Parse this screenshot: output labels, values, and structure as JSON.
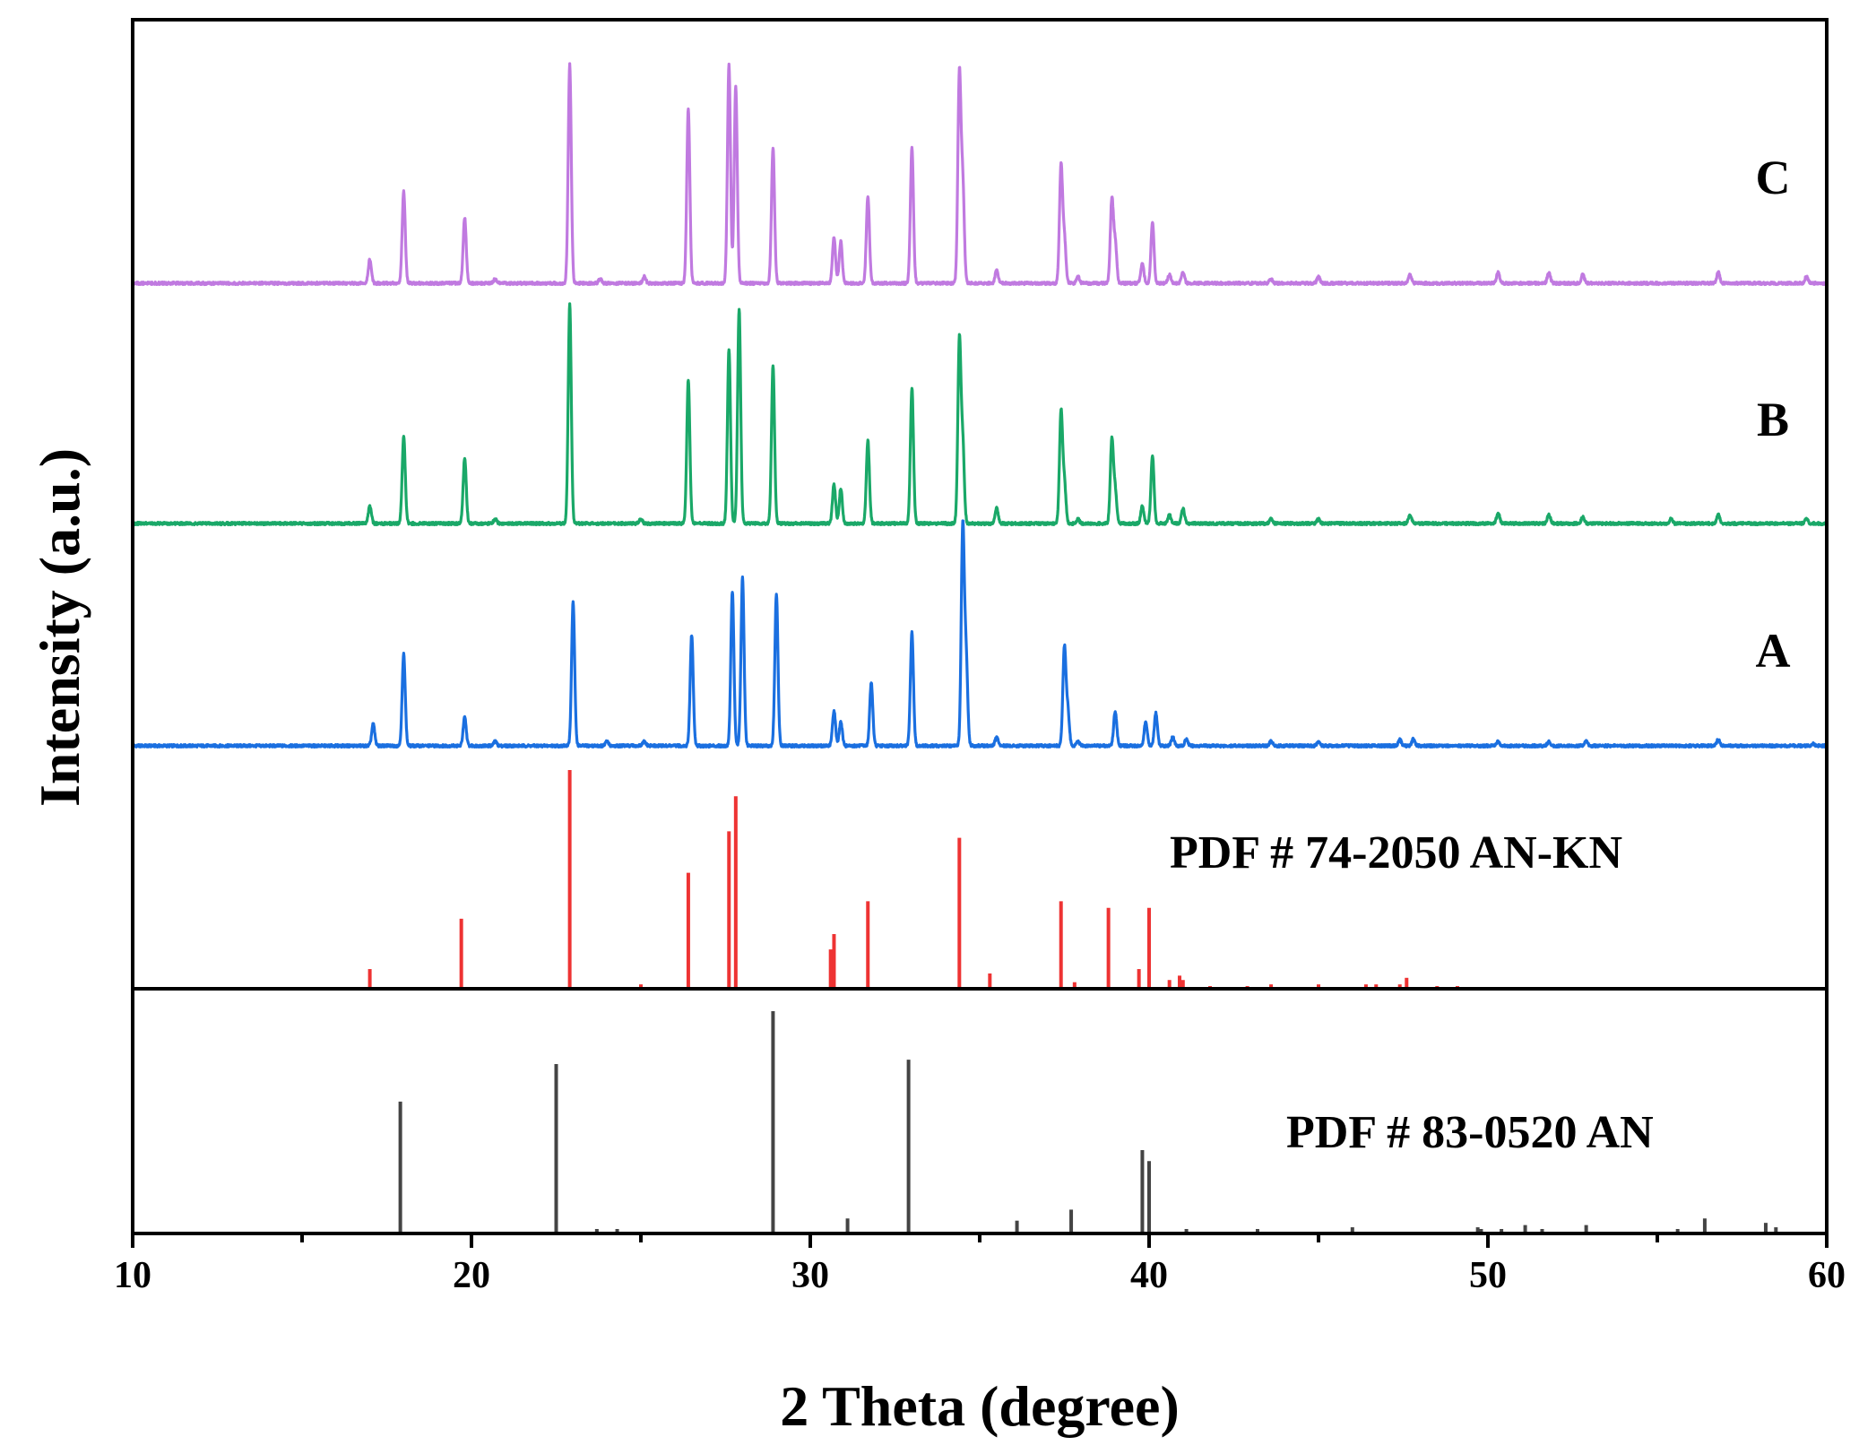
{
  "chart_data": {
    "type": "line",
    "title": "",
    "xlabel": "2 Theta (degree)",
    "ylabel": "Intensity (a.u.)",
    "xlim": [
      10,
      60
    ],
    "x_ticks": [
      10,
      20,
      30,
      40,
      50,
      60
    ],
    "grid": false,
    "colors": {
      "A": "#1a6fe0",
      "B": "#1aa868",
      "C": "#c07ae0",
      "ref_ankn": "#ee3333",
      "ref_an": "#444444"
    },
    "series": [
      {
        "name": "A",
        "label": "A",
        "baseline": 0.0,
        "peaks": [
          [
            17.1,
            0.1
          ],
          [
            18.0,
            0.42
          ],
          [
            19.8,
            0.13
          ],
          [
            20.7,
            0.02
          ],
          [
            23.0,
            0.66
          ],
          [
            24.0,
            0.02
          ],
          [
            25.1,
            0.02
          ],
          [
            26.5,
            0.51
          ],
          [
            27.7,
            0.71
          ],
          [
            28.0,
            0.77
          ],
          [
            29.0,
            0.7
          ],
          [
            30.7,
            0.16
          ],
          [
            30.9,
            0.11
          ],
          [
            31.8,
            0.29
          ],
          [
            33.0,
            0.52
          ],
          [
            34.5,
            1.0
          ],
          [
            34.6,
            0.4
          ],
          [
            35.5,
            0.04
          ],
          [
            37.5,
            0.45
          ],
          [
            37.6,
            0.16
          ],
          [
            37.9,
            0.02
          ],
          [
            39.0,
            0.16
          ],
          [
            39.9,
            0.11
          ],
          [
            40.2,
            0.15
          ],
          [
            40.7,
            0.04
          ],
          [
            41.1,
            0.03
          ],
          [
            43.6,
            0.02
          ],
          [
            45.0,
            0.02
          ],
          [
            47.4,
            0.03
          ],
          [
            47.8,
            0.03
          ],
          [
            50.3,
            0.02
          ],
          [
            51.8,
            0.02
          ],
          [
            52.9,
            0.02
          ],
          [
            56.8,
            0.03
          ],
          [
            59.6,
            0.01
          ]
        ]
      },
      {
        "name": "B",
        "label": "B",
        "baseline": 0.0,
        "peaks": [
          [
            17.0,
            0.08
          ],
          [
            18.0,
            0.4
          ],
          [
            19.8,
            0.3
          ],
          [
            20.7,
            0.02
          ],
          [
            22.9,
            1.0
          ],
          [
            25.0,
            0.02
          ],
          [
            26.4,
            0.66
          ],
          [
            27.6,
            0.8
          ],
          [
            27.9,
            0.98
          ],
          [
            28.9,
            0.72
          ],
          [
            30.7,
            0.18
          ],
          [
            30.9,
            0.16
          ],
          [
            31.7,
            0.38
          ],
          [
            33.0,
            0.62
          ],
          [
            34.4,
            0.83
          ],
          [
            34.5,
            0.36
          ],
          [
            35.5,
            0.07
          ],
          [
            37.4,
            0.51
          ],
          [
            37.5,
            0.18
          ],
          [
            37.9,
            0.02
          ],
          [
            38.9,
            0.38
          ],
          [
            39.0,
            0.15
          ],
          [
            39.8,
            0.08
          ],
          [
            40.1,
            0.31
          ],
          [
            40.6,
            0.04
          ],
          [
            41.0,
            0.07
          ],
          [
            43.6,
            0.02
          ],
          [
            45.0,
            0.02
          ],
          [
            47.7,
            0.04
          ],
          [
            50.3,
            0.05
          ],
          [
            51.8,
            0.04
          ],
          [
            52.8,
            0.03
          ],
          [
            55.4,
            0.02
          ],
          [
            56.8,
            0.04
          ],
          [
            59.4,
            0.02
          ]
        ]
      },
      {
        "name": "C",
        "label": "C",
        "baseline": 0.0,
        "peaks": [
          [
            17.0,
            0.11
          ],
          [
            18.0,
            0.42
          ],
          [
            19.8,
            0.3
          ],
          [
            20.7,
            0.02
          ],
          [
            22.9,
            1.0
          ],
          [
            23.8,
            0.02
          ],
          [
            25.1,
            0.03
          ],
          [
            26.4,
            0.8
          ],
          [
            27.6,
            1.0
          ],
          [
            27.8,
            0.9
          ],
          [
            28.9,
            0.62
          ],
          [
            30.7,
            0.21
          ],
          [
            30.9,
            0.19
          ],
          [
            31.7,
            0.4
          ],
          [
            33.0,
            0.62
          ],
          [
            34.4,
            0.95
          ],
          [
            34.5,
            0.45
          ],
          [
            35.5,
            0.06
          ],
          [
            37.4,
            0.53
          ],
          [
            37.5,
            0.2
          ],
          [
            37.9,
            0.03
          ],
          [
            38.9,
            0.38
          ],
          [
            39.0,
            0.18
          ],
          [
            39.8,
            0.09
          ],
          [
            40.1,
            0.28
          ],
          [
            40.6,
            0.04
          ],
          [
            41.0,
            0.05
          ],
          [
            43.6,
            0.02
          ],
          [
            45.0,
            0.03
          ],
          [
            47.7,
            0.04
          ],
          [
            50.3,
            0.05
          ],
          [
            51.8,
            0.05
          ],
          [
            52.8,
            0.04
          ],
          [
            56.8,
            0.05
          ],
          [
            59.4,
            0.03
          ]
        ]
      }
    ],
    "references": [
      {
        "name": "PDF # 74-2050 AN-KN",
        "label": "PDF # 74-2050 AN-KN",
        "lines": [
          [
            17.0,
            0.09
          ],
          [
            19.7,
            0.32
          ],
          [
            22.9,
            1.0
          ],
          [
            25.0,
            0.02
          ],
          [
            26.4,
            0.53
          ],
          [
            27.6,
            0.72
          ],
          [
            27.8,
            0.88
          ],
          [
            30.6,
            0.18
          ],
          [
            30.7,
            0.25
          ],
          [
            31.7,
            0.4
          ],
          [
            34.4,
            0.69
          ],
          [
            35.3,
            0.07
          ],
          [
            37.4,
            0.4
          ],
          [
            37.8,
            0.03
          ],
          [
            38.8,
            0.37
          ],
          [
            39.7,
            0.09
          ],
          [
            40.0,
            0.37
          ],
          [
            40.6,
            0.04
          ],
          [
            40.9,
            0.06
          ],
          [
            41.0,
            0.04
          ],
          [
            41.8,
            0.01
          ],
          [
            42.9,
            0.01
          ],
          [
            43.6,
            0.02
          ],
          [
            45.0,
            0.02
          ],
          [
            46.4,
            0.02
          ],
          [
            46.7,
            0.02
          ],
          [
            47.4,
            0.02
          ],
          [
            47.6,
            0.05
          ],
          [
            48.5,
            0.01
          ],
          [
            49.1,
            0.01
          ]
        ]
      },
      {
        "name": "PDF # 83-0520 AN",
        "label": "PDF # 83-0520 AN",
        "lines": [
          [
            17.9,
            0.59
          ],
          [
            22.5,
            0.76
          ],
          [
            23.7,
            0.01
          ],
          [
            24.3,
            0.01
          ],
          [
            28.9,
            1.0
          ],
          [
            31.1,
            0.06
          ],
          [
            32.9,
            0.78
          ],
          [
            36.1,
            0.05
          ],
          [
            37.7,
            0.1
          ],
          [
            39.8,
            0.37
          ],
          [
            40.0,
            0.32
          ],
          [
            41.1,
            0.01
          ],
          [
            43.2,
            0.01
          ],
          [
            46.0,
            0.02
          ],
          [
            49.7,
            0.02
          ],
          [
            49.8,
            0.01
          ],
          [
            50.4,
            0.01
          ],
          [
            51.1,
            0.03
          ],
          [
            51.6,
            0.01
          ],
          [
            52.9,
            0.03
          ],
          [
            55.6,
            0.01
          ],
          [
            56.4,
            0.06
          ],
          [
            58.2,
            0.04
          ],
          [
            58.5,
            0.02
          ]
        ]
      }
    ]
  }
}
